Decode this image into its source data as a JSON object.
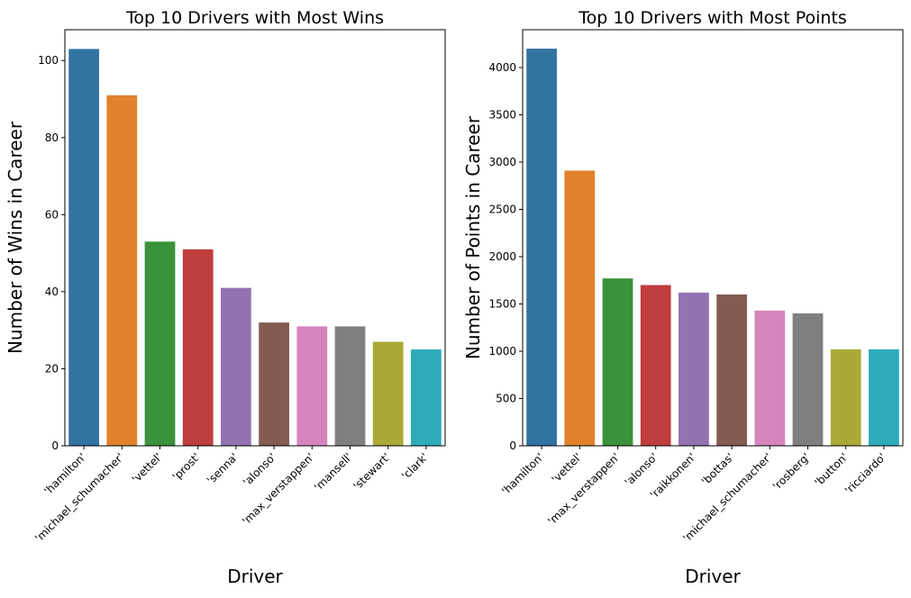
{
  "chart_data": [
    {
      "type": "bar",
      "title": "Top 10 Drivers with Most Wins",
      "xlabel": "Driver",
      "ylabel": "Number of Wins in Career",
      "ylim": [
        0,
        108
      ],
      "yticks": [
        0,
        20,
        40,
        60,
        80,
        100
      ],
      "grid": false,
      "categories": [
        "'hamilton'",
        "'michael_schumacher'",
        "'vettel'",
        "'prost'",
        "'senna'",
        "'alonso'",
        "'max_verstappen'",
        "'mansell'",
        "'stewart'",
        "'clark'"
      ],
      "values": [
        103,
        91,
        53,
        51,
        41,
        32,
        31,
        31,
        27,
        25
      ],
      "colors": [
        "#3274a1",
        "#e1812c",
        "#3a923a",
        "#c03d3e",
        "#9372b2",
        "#845b53",
        "#d684bd",
        "#7f7f7f",
        "#a9aa35",
        "#2eabb8"
      ]
    },
    {
      "type": "bar",
      "title": "Top 10 Drivers with Most Points",
      "xlabel": "Driver",
      "ylabel": "Number of Points in Career",
      "ylim": [
        0,
        4400
      ],
      "yticks": [
        0,
        500,
        1000,
        1500,
        2000,
        2500,
        3000,
        3500,
        4000
      ],
      "grid": false,
      "categories": [
        "'hamilton'",
        "'vettel'",
        "'max_verstappen'",
        "'alonso'",
        "'raikkonen'",
        "'bottas'",
        "'michael_schumacher'",
        "'rosberg'",
        "'button'",
        "'ricciardo'"
      ],
      "values": [
        4200,
        2910,
        1770,
        1700,
        1620,
        1600,
        1430,
        1400,
        1020,
        1020
      ],
      "colors": [
        "#3274a1",
        "#e1812c",
        "#3a923a",
        "#c03d3e",
        "#9372b2",
        "#845b53",
        "#d684bd",
        "#7f7f7f",
        "#a9aa35",
        "#2eabb8"
      ]
    }
  ]
}
